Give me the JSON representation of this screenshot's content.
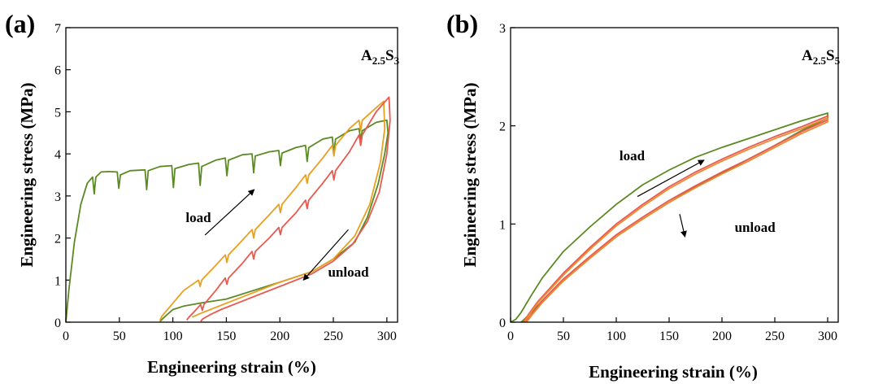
{
  "chart_data": [
    {
      "type": "line",
      "panel_label": "(a)",
      "sample_main": "A",
      "sample_sub1": "2.5",
      "sample_mid": "S",
      "sample_sub2": "3",
      "xlabel": "Engineering strain (%)",
      "ylabel": "Engineering stress (MPa)",
      "xlim": [
        0,
        310
      ],
      "ylim": [
        0,
        7
      ],
      "xticks": [
        "0",
        "50",
        "100",
        "150",
        "200",
        "250",
        "300"
      ],
      "yticks": [
        "0",
        "1",
        "2",
        "3",
        "4",
        "5",
        "6",
        "7"
      ],
      "annotations": [
        {
          "text": "load",
          "x": 112,
          "y": 2.38,
          "arrow_from": [
            130,
            2.07
          ],
          "arrow_to": [
            176,
            3.15
          ]
        },
        {
          "text": "unload",
          "x": 245,
          "y": 1.08,
          "arrow_from": [
            264,
            2.2
          ],
          "arrow_to": [
            222,
            1.0
          ]
        }
      ],
      "series": [
        {
          "color": "#5b8a23",
          "points": [
            [
              0,
              0
            ],
            [
              3,
              0.8
            ],
            [
              8,
              1.9
            ],
            [
              14,
              2.8
            ],
            [
              20,
              3.3
            ],
            [
              25,
              3.45
            ],
            [
              26.5,
              3.05
            ],
            [
              28,
              3.45
            ],
            [
              33,
              3.57
            ],
            [
              40,
              3.58
            ],
            [
              48,
              3.57
            ],
            [
              49.5,
              3.18
            ],
            [
              51,
              3.5
            ],
            [
              60,
              3.6
            ],
            [
              74,
              3.62
            ],
            [
              75.5,
              3.15
            ],
            [
              77,
              3.6
            ],
            [
              88,
              3.7
            ],
            [
              99,
              3.72
            ],
            [
              100.5,
              3.2
            ],
            [
              102,
              3.65
            ],
            [
              115,
              3.75
            ],
            [
              124,
              3.78
            ],
            [
              125.5,
              3.25
            ],
            [
              127,
              3.7
            ],
            [
              140,
              3.85
            ],
            [
              149,
              3.9
            ],
            [
              150.5,
              3.48
            ],
            [
              152,
              3.85
            ],
            [
              165,
              3.98
            ],
            [
              174,
              4.0
            ],
            [
              175.5,
              3.55
            ],
            [
              177,
              3.95
            ],
            [
              190,
              4.05
            ],
            [
              199,
              4.08
            ],
            [
              200.5,
              3.72
            ],
            [
              202,
              4.02
            ],
            [
              215,
              4.15
            ],
            [
              224,
              4.2
            ],
            [
              225.5,
              3.82
            ],
            [
              227,
              4.15
            ],
            [
              240,
              4.35
            ],
            [
              249,
              4.4
            ],
            [
              250.5,
              4.0
            ],
            [
              252,
              4.35
            ],
            [
              265,
              4.55
            ],
            [
              274,
              4.6
            ],
            [
              275.5,
              4.35
            ],
            [
              277,
              4.55
            ],
            [
              290,
              4.75
            ],
            [
              300,
              4.8
            ],
            [
              301,
              4.5
            ],
            [
              298,
              4.0
            ],
            [
              292,
              3.3
            ],
            [
              282,
              2.5
            ],
            [
              270,
              1.9
            ],
            [
              250,
              1.5
            ],
            [
              230,
              1.2
            ],
            [
              200,
              0.95
            ],
            [
              175,
              0.75
            ],
            [
              150,
              0.55
            ],
            [
              125,
              0.45
            ],
            [
              110,
              0.38
            ],
            [
              100,
              0.3
            ],
            [
              92,
              0.12
            ],
            [
              88,
              0.02
            ]
          ]
        },
        {
          "color": "#e8a020",
          "points": [
            [
              88,
              0.05
            ],
            [
              90,
              0.15
            ],
            [
              100,
              0.45
            ],
            [
              110,
              0.75
            ],
            [
              124,
              1.0
            ],
            [
              125.5,
              0.85
            ],
            [
              127,
              1.0
            ],
            [
              140,
              1.35
            ],
            [
              149,
              1.6
            ],
            [
              150.5,
              1.42
            ],
            [
              152,
              1.6
            ],
            [
              165,
              1.95
            ],
            [
              174,
              2.2
            ],
            [
              175.5,
              2.0
            ],
            [
              177,
              2.2
            ],
            [
              190,
              2.55
            ],
            [
              199,
              2.8
            ],
            [
              200.5,
              2.6
            ],
            [
              202,
              2.8
            ],
            [
              215,
              3.2
            ],
            [
              224,
              3.5
            ],
            [
              225.5,
              3.3
            ],
            [
              227,
              3.5
            ],
            [
              240,
              3.9
            ],
            [
              249,
              4.2
            ],
            [
              250.5,
              3.95
            ],
            [
              252,
              4.2
            ],
            [
              265,
              4.6
            ],
            [
              274,
              4.8
            ],
            [
              275.5,
              4.55
            ],
            [
              277,
              4.8
            ],
            [
              290,
              5.1
            ],
            [
              297,
              5.25
            ],
            [
              298,
              4.6
            ],
            [
              294,
              3.8
            ],
            [
              284,
              2.8
            ],
            [
              270,
              2.05
            ],
            [
              250,
              1.5
            ],
            [
              230,
              1.2
            ],
            [
              200,
              0.95
            ],
            [
              175,
              0.7
            ],
            [
              150,
              0.45
            ],
            [
              135,
              0.3
            ],
            [
              125,
              0.2
            ],
            [
              118,
              0.12
            ]
          ]
        },
        {
          "color": "#e85a50",
          "points": [
            [
              113,
              0.05
            ],
            [
              115,
              0.12
            ],
            [
              120,
              0.25
            ],
            [
              126,
              0.42
            ],
            [
              127.5,
              0.28
            ],
            [
              129,
              0.42
            ],
            [
              140,
              0.75
            ],
            [
              149,
              1.05
            ],
            [
              150.5,
              0.9
            ],
            [
              152,
              1.05
            ],
            [
              165,
              1.4
            ],
            [
              174,
              1.68
            ],
            [
              175.5,
              1.5
            ],
            [
              177,
              1.68
            ],
            [
              190,
              2.0
            ],
            [
              199,
              2.25
            ],
            [
              200.5,
              2.08
            ],
            [
              202,
              2.25
            ],
            [
              215,
              2.6
            ],
            [
              224,
              2.9
            ],
            [
              225.5,
              2.7
            ],
            [
              227,
              2.9
            ],
            [
              240,
              3.3
            ],
            [
              249,
              3.6
            ],
            [
              250.5,
              3.38
            ],
            [
              252,
              3.6
            ],
            [
              265,
              4.05
            ],
            [
              274,
              4.45
            ],
            [
              275.5,
              4.2
            ],
            [
              277,
              4.45
            ],
            [
              290,
              5.0
            ],
            [
              302,
              5.35
            ],
            [
              303,
              4.8
            ],
            [
              300,
              4.0
            ],
            [
              293,
              3.1
            ],
            [
              282,
              2.4
            ],
            [
              268,
              1.85
            ],
            [
              250,
              1.45
            ],
            [
              230,
              1.15
            ],
            [
              205,
              0.9
            ],
            [
              180,
              0.65
            ],
            [
              160,
              0.45
            ],
            [
              145,
              0.3
            ],
            [
              135,
              0.18
            ],
            [
              128,
              0.08
            ],
            [
              126,
              0.02
            ]
          ]
        }
      ]
    },
    {
      "type": "line",
      "panel_label": "(b)",
      "sample_main": "A",
      "sample_sub1": "2.5",
      "sample_mid": "S",
      "sample_sub2": "5",
      "xlabel": "Engineering strain (%)",
      "ylabel": "Engineering stress (MPa)",
      "xlim": [
        0,
        310
      ],
      "ylim": [
        0,
        3
      ],
      "xticks": [
        "0",
        "50",
        "100",
        "150",
        "200",
        "250",
        "300"
      ],
      "yticks": [
        "0",
        "1",
        "2",
        "3"
      ],
      "annotations": [
        {
          "text": "load",
          "x": 103,
          "y": 1.65,
          "arrow_from": [
            120,
            1.28
          ],
          "arrow_to": [
            183,
            1.65
          ]
        },
        {
          "text": "unload",
          "x": 212,
          "y": 0.92,
          "arrow_from": [
            160,
            1.1
          ],
          "arrow_to": [
            165,
            0.87
          ]
        }
      ],
      "series": [
        {
          "color": "#5b8a23",
          "points": [
            [
              0,
              0
            ],
            [
              5,
              0.03
            ],
            [
              10,
              0.1
            ],
            [
              20,
              0.28
            ],
            [
              30,
              0.45
            ],
            [
              50,
              0.72
            ],
            [
              75,
              0.97
            ],
            [
              100,
              1.2
            ],
            [
              125,
              1.4
            ],
            [
              150,
              1.55
            ],
            [
              175,
              1.68
            ],
            [
              200,
              1.78
            ],
            [
              225,
              1.87
            ],
            [
              250,
              1.96
            ],
            [
              275,
              2.05
            ],
            [
              300,
              2.13
            ],
            [
              300,
              2.08
            ],
            [
              275,
              1.95
            ],
            [
              250,
              1.8
            ],
            [
              225,
              1.66
            ],
            [
              200,
              1.52
            ],
            [
              175,
              1.38
            ],
            [
              150,
              1.22
            ],
            [
              125,
              1.05
            ],
            [
              100,
              0.87
            ],
            [
              75,
              0.65
            ],
            [
              50,
              0.42
            ],
            [
              30,
              0.22
            ],
            [
              20,
              0.1
            ],
            [
              12,
              0.02
            ],
            [
              10,
              0.0
            ]
          ]
        },
        {
          "color": "#e85a50",
          "points": [
            [
              12,
              0
            ],
            [
              15,
              0.05
            ],
            [
              25,
              0.2
            ],
            [
              50,
              0.5
            ],
            [
              75,
              0.76
            ],
            [
              100,
              1.0
            ],
            [
              125,
              1.2
            ],
            [
              150,
              1.38
            ],
            [
              175,
              1.53
            ],
            [
              200,
              1.66
            ],
            [
              225,
              1.78
            ],
            [
              250,
              1.89
            ],
            [
              275,
              1.99
            ],
            [
              300,
              2.1
            ],
            [
              300,
              2.06
            ],
            [
              275,
              1.94
            ],
            [
              250,
              1.8
            ],
            [
              225,
              1.66
            ],
            [
              200,
              1.53
            ],
            [
              175,
              1.39
            ],
            [
              150,
              1.24
            ],
            [
              125,
              1.07
            ],
            [
              100,
              0.89
            ],
            [
              75,
              0.67
            ],
            [
              50,
              0.44
            ],
            [
              30,
              0.22
            ],
            [
              20,
              0.08
            ],
            [
              14,
              0.0
            ]
          ]
        },
        {
          "color": "#f08a30",
          "points": [
            [
              13,
              0
            ],
            [
              16,
              0.05
            ],
            [
              26,
              0.2
            ],
            [
              50,
              0.48
            ],
            [
              75,
              0.74
            ],
            [
              100,
              0.98
            ],
            [
              125,
              1.18
            ],
            [
              150,
              1.36
            ],
            [
              175,
              1.51
            ],
            [
              200,
              1.64
            ],
            [
              225,
              1.76
            ],
            [
              250,
              1.87
            ],
            [
              275,
              1.97
            ],
            [
              300,
              2.08
            ],
            [
              300,
              2.04
            ],
            [
              275,
              1.92
            ],
            [
              250,
              1.78
            ],
            [
              225,
              1.64
            ],
            [
              200,
              1.51
            ],
            [
              175,
              1.37
            ],
            [
              150,
              1.22
            ],
            [
              125,
              1.05
            ],
            [
              100,
              0.87
            ],
            [
              75,
              0.65
            ],
            [
              50,
              0.42
            ],
            [
              30,
              0.2
            ],
            [
              20,
              0.07
            ],
            [
              15,
              0.0
            ]
          ]
        }
      ]
    }
  ]
}
